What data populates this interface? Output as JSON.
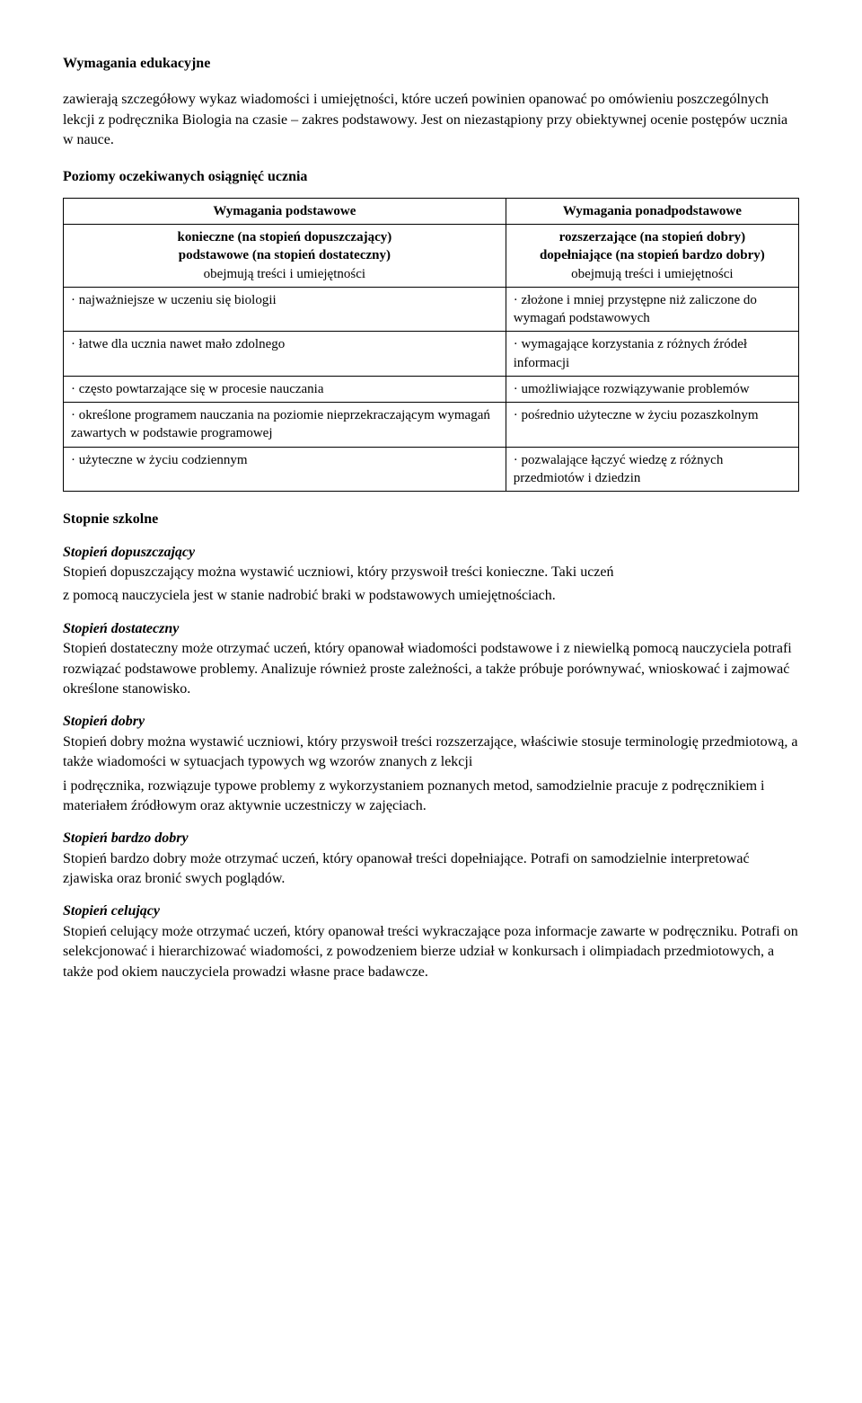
{
  "title": "Wymagania edukacyjne",
  "intro": {
    "p1": "zawierają  szczegółowy wykaz wiadomości i umiejętności, które uczeń powinien opanować po omówieniu poszczególnych lekcji z podręcznika Biologia na czasie – zakres podstawowy. Jest on niezastąpiony przy obiektywnej ocenie postępów ucznia w nauce."
  },
  "section1_heading": "Poziomy oczekiwanych osiągnięć ucznia",
  "table": {
    "header_left": "Wymagania podstawowe",
    "header_right": "Wymagania ponadpodstawowe",
    "sub_left_l1": "konieczne (na stopień dopuszczający)",
    "sub_left_l2": "podstawowe (na stopień dostateczny)",
    "sub_left_l3": "obejmują treści i umiejętności",
    "sub_right_l1": "rozszerzające (na stopień dobry)",
    "sub_right_l2": "dopełniające (na stopień bardzo dobry)",
    "sub_right_l3": "obejmują treści i umiejętności",
    "row1_left": "· najważniejsze w uczeniu się biologii",
    "row1_right": "· złożone i mniej przystępne niż zaliczone do wymagań podstawowych",
    "row2_left": "· łatwe dla ucznia nawet mało zdolnego",
    "row2_right": "· wymagające korzystania z różnych źródeł informacji",
    "row3_left": "· często powtarzające się w procesie nauczania",
    "row3_right": "· umożliwiające rozwiązywanie problemów",
    "row4_left": "· określone programem nauczania na poziomie nieprzekraczającym wymagań zawartych w podstawie programowej",
    "row4_right": "· pośrednio użyteczne w życiu pozaszkolnym",
    "row5_left": "· użyteczne w życiu codziennym",
    "row5_right": "· pozwalające łączyć wiedzę z różnych przedmiotów i dziedzin"
  },
  "stopnie_heading": "Stopnie szkolne",
  "grades": {
    "dopuszczajacy": {
      "heading": "Stopień dopuszczający",
      "l1": "Stopień dopuszczający można wystawić uczniowi, który przyswoił treści konieczne. Taki uczeń",
      "l2": "z pomocą nauczyciela jest w stanie nadrobić braki w podstawowych umiejętnościach."
    },
    "dostateczny": {
      "heading": "Stopień dostateczny",
      "l1": "Stopień dostateczny może otrzymać uczeń, który opanował wiadomości podstawowe i z niewielką pomocą nauczyciela potrafi rozwiązać podstawowe problemy. Analizuje również proste zależności, a także próbuje porównywać, wnioskować i zajmować określone stanowisko."
    },
    "dobry": {
      "heading": "Stopień dobry",
      "l1": "Stopień dobry można wystawić uczniowi, który przyswoił treści rozszerzające, właściwie stosuje terminologię przedmiotową, a także wiadomości w sytuacjach typowych wg wzorów znanych z lekcji",
      "l2": "i podręcznika, rozwiązuje typowe problemy z wykorzystaniem poznanych metod, samodzielnie pracuje z podręcznikiem i materiałem źródłowym oraz aktywnie uczestniczy w zajęciach."
    },
    "bardzo_dobry": {
      "heading": "Stopień bardzo dobry",
      "l1": "Stopień bardzo dobry może otrzymać uczeń, który opanował treści dopełniające. Potrafi on samodzielnie interpretować zjawiska oraz bronić swych poglądów."
    },
    "celujacy": {
      "heading": "Stopień celujący",
      "l1": "Stopień celujący może otrzymać uczeń, który opanował treści wykraczające poza informacje zawarte w podręczniku. Potrafi on selekcjonować i hierarchizować wiadomości, z powodzeniem bierze udział w konkursach i olimpiadach przedmiotowych, a także pod okiem nauczyciela prowadzi własne prace badawcze."
    }
  }
}
